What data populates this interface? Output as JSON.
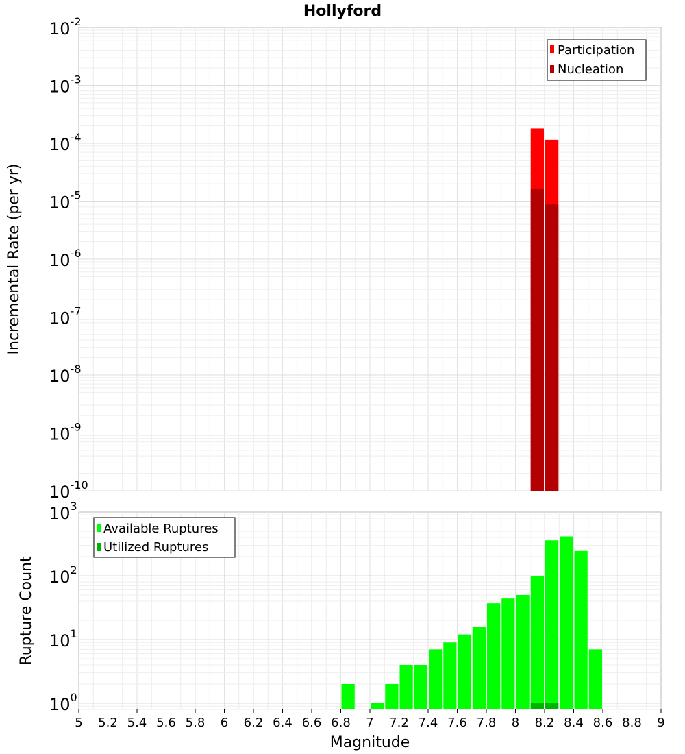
{
  "chart_data": [
    {
      "type": "bar",
      "title": "Hollyford",
      "xlabel": "",
      "ylabel": "Incremental Rate (per yr)",
      "y_scale": "log",
      "ylim": [
        1e-10,
        0.01
      ],
      "xlim": [
        5,
        9
      ],
      "ytick_labels": [
        {
          "base": "10",
          "exp": "-10",
          "value": 1e-10
        },
        {
          "base": "10",
          "exp": "-9",
          "value": 1e-09
        },
        {
          "base": "10",
          "exp": "-8",
          "value": 1e-08
        },
        {
          "base": "10",
          "exp": "-7",
          "value": 1e-07
        },
        {
          "base": "10",
          "exp": "-6",
          "value": 1e-06
        },
        {
          "base": "10",
          "exp": "-5",
          "value": 1e-05
        },
        {
          "base": "10",
          "exp": "-4",
          "value": 0.0001
        },
        {
          "base": "10",
          "exp": "-3",
          "value": 0.001
        },
        {
          "base": "10",
          "exp": "-2",
          "value": 0.01
        }
      ],
      "bin_width": 0.1,
      "grid": true,
      "legend_position": "top-right",
      "series": [
        {
          "name": "Participation",
          "color": "#ff0000",
          "x": [
            8.15,
            8.25
          ],
          "values": [
            0.00018,
            0.000115
          ]
        },
        {
          "name": "Nucleation",
          "color": "#b30000",
          "x": [
            8.15,
            8.25
          ],
          "values": [
            1.65e-05,
            8.8e-06
          ]
        }
      ]
    },
    {
      "type": "bar",
      "title": "",
      "xlabel": "Magnitude",
      "ylabel": "Rupture Count",
      "y_scale": "log",
      "ylim": [
        0.8,
        1000
      ],
      "xlim": [
        5,
        9
      ],
      "ytick_labels": [
        {
          "base": "10",
          "exp": "0",
          "value": 1
        },
        {
          "base": "10",
          "exp": "1",
          "value": 10
        },
        {
          "base": "10",
          "exp": "2",
          "value": 100
        },
        {
          "base": "10",
          "exp": "3",
          "value": 1000
        }
      ],
      "xtick_labels": [
        "5",
        "5.2",
        "5.4",
        "5.6",
        "5.8",
        "6",
        "6.2",
        "6.4",
        "6.6",
        "6.8",
        "7",
        "7.2",
        "7.4",
        "7.6",
        "7.8",
        "8",
        "8.2",
        "8.4",
        "8.6",
        "8.8",
        "9"
      ],
      "bin_width": 0.1,
      "grid": true,
      "legend_position": "top-left",
      "series": [
        {
          "name": "Available Ruptures",
          "color": "#00ff00",
          "x": [
            6.85,
            7.05,
            7.15,
            7.25,
            7.35,
            7.45,
            7.55,
            7.65,
            7.75,
            7.85,
            7.95,
            8.05,
            8.15,
            8.25,
            8.35,
            8.45,
            8.55
          ],
          "values": [
            2,
            1,
            2,
            4,
            4,
            7,
            9,
            12,
            16,
            37,
            44,
            50,
            100,
            360,
            415,
            245,
            7
          ]
        },
        {
          "name": "Utilized Ruptures",
          "color": "#00b300",
          "x": [
            8.15,
            8.25
          ],
          "values": [
            1,
            1
          ]
        }
      ]
    }
  ]
}
